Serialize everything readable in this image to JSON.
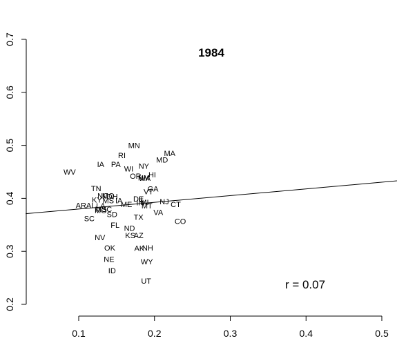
{
  "chart_data": {
    "type": "scatter",
    "title": "1984",
    "annotation": "r = 0.07",
    "xlabel": "",
    "ylabel": "",
    "xlim": [
      0.03,
      0.52
    ],
    "ylim": [
      0.19,
      0.71
    ],
    "x_ticks": [
      0.1,
      0.2,
      0.3,
      0.4,
      0.5
    ],
    "y_ticks": [
      0.2,
      0.3,
      0.4,
      0.5,
      0.6,
      0.7
    ],
    "x_tick_labels": [
      "0.1",
      "0.2",
      "0.3",
      "0.4",
      "0.5"
    ],
    "y_tick_labels": [
      "0.2",
      "0.3",
      "0.4",
      "0.5",
      "0.6",
      "0.7"
    ],
    "regression_line": {
      "x": [
        0.03,
        0.52
      ],
      "y": [
        0.371,
        0.433
      ]
    },
    "points": [
      {
        "label": "MN",
        "x": 0.173,
        "y": 0.5
      },
      {
        "label": "MA",
        "x": 0.22,
        "y": 0.485
      },
      {
        "label": "RI",
        "x": 0.157,
        "y": 0.481
      },
      {
        "label": "MD",
        "x": 0.21,
        "y": 0.473
      },
      {
        "label": "IA",
        "x": 0.129,
        "y": 0.464
      },
      {
        "label": "PA",
        "x": 0.149,
        "y": 0.464
      },
      {
        "label": "NY",
        "x": 0.186,
        "y": 0.461
      },
      {
        "label": "WI",
        "x": 0.166,
        "y": 0.456
      },
      {
        "label": "WV",
        "x": 0.088,
        "y": 0.45
      },
      {
        "label": "HI",
        "x": 0.197,
        "y": 0.445
      },
      {
        "label": "OR",
        "x": 0.175,
        "y": 0.442
      },
      {
        "label": "WA",
        "x": 0.187,
        "y": 0.438
      },
      {
        "label": "NM",
        "x": 0.186,
        "y": 0.439
      },
      {
        "label": "TN",
        "x": 0.123,
        "y": 0.419
      },
      {
        "label": "GA",
        "x": 0.198,
        "y": 0.418
      },
      {
        "label": "VT",
        "x": 0.192,
        "y": 0.413
      },
      {
        "label": "NC",
        "x": 0.132,
        "y": 0.405
      },
      {
        "label": "MO",
        "x": 0.139,
        "y": 0.405
      },
      {
        "label": "OH",
        "x": 0.144,
        "y": 0.404
      },
      {
        "label": "KY",
        "x": 0.124,
        "y": 0.397
      },
      {
        "label": "MS",
        "x": 0.139,
        "y": 0.396
      },
      {
        "label": "IA",
        "x": 0.153,
        "y": 0.396
      },
      {
        "label": "DE",
        "x": 0.179,
        "y": 0.399
      },
      {
        "label": "IL",
        "x": 0.183,
        "y": 0.397
      },
      {
        "label": "MI",
        "x": 0.187,
        "y": 0.393
      },
      {
        "label": "NJ",
        "x": 0.213,
        "y": 0.394
      },
      {
        "label": "IN",
        "x": 0.181,
        "y": 0.392
      },
      {
        "label": "CT",
        "x": 0.228,
        "y": 0.389
      },
      {
        "label": "ME",
        "x": 0.163,
        "y": 0.389
      },
      {
        "label": "MT",
        "x": 0.19,
        "y": 0.386
      },
      {
        "label": "AR",
        "x": 0.103,
        "y": 0.387
      },
      {
        "label": "AL",
        "x": 0.116,
        "y": 0.387
      },
      {
        "label": "LA",
        "x": 0.129,
        "y": 0.386
      },
      {
        "label": "MS",
        "x": 0.129,
        "y": 0.38
      },
      {
        "label": "SC",
        "x": 0.137,
        "y": 0.38
      },
      {
        "label": "MO",
        "x": 0.129,
        "y": 0.377
      },
      {
        "label": "VA",
        "x": 0.205,
        "y": 0.374
      },
      {
        "label": "SD",
        "x": 0.144,
        "y": 0.37
      },
      {
        "label": "SC",
        "x": 0.114,
        "y": 0.362
      },
      {
        "label": "TX",
        "x": 0.179,
        "y": 0.365
      },
      {
        "label": "CO",
        "x": 0.234,
        "y": 0.357
      },
      {
        "label": "FL",
        "x": 0.148,
        "y": 0.35
      },
      {
        "label": "ND",
        "x": 0.167,
        "y": 0.344
      },
      {
        "label": "AZ",
        "x": 0.179,
        "y": 0.33
      },
      {
        "label": "KS",
        "x": 0.168,
        "y": 0.33
      },
      {
        "label": "NV",
        "x": 0.128,
        "y": 0.326
      },
      {
        "label": "NH",
        "x": 0.191,
        "y": 0.307
      },
      {
        "label": "AK",
        "x": 0.18,
        "y": 0.306
      },
      {
        "label": "OK",
        "x": 0.141,
        "y": 0.307
      },
      {
        "label": "NE",
        "x": 0.14,
        "y": 0.285
      },
      {
        "label": "WY",
        "x": 0.19,
        "y": 0.281
      },
      {
        "label": "ID",
        "x": 0.144,
        "y": 0.264
      },
      {
        "label": "UT",
        "x": 0.189,
        "y": 0.244
      }
    ]
  }
}
